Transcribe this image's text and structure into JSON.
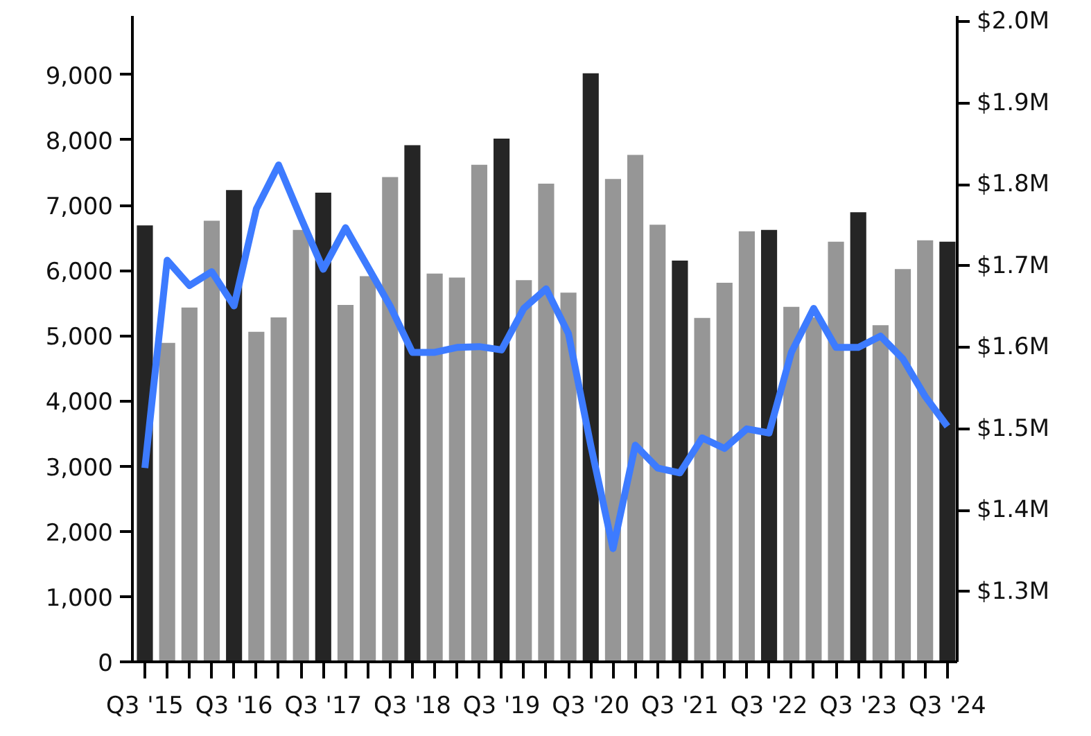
{
  "chart_data": {
    "type": "bar",
    "categories": [
      "Q3 '15",
      null,
      null,
      null,
      "Q3 '16",
      null,
      null,
      null,
      "Q3 '17",
      null,
      null,
      null,
      "Q3 '18",
      null,
      null,
      null,
      "Q3 '19",
      null,
      null,
      null,
      "Q3 '20",
      null,
      null,
      null,
      "Q3 '21",
      null,
      null,
      null,
      "Q3 '22",
      null,
      null,
      null,
      "Q3 '23",
      null,
      null,
      null,
      "Q3 '24"
    ],
    "series": [
      {
        "colors": [
          "#252525",
          "#969696",
          "#969696",
          "#969696",
          "#252525",
          "#969696",
          "#969696",
          "#969696",
          "#252525",
          "#969696",
          "#969696",
          "#969696",
          "#252525",
          "#969696",
          "#969696",
          "#969696",
          "#252525",
          "#969696",
          "#969696",
          "#969696",
          "#252525",
          "#969696",
          "#969696",
          "#969696",
          "#252525",
          "#969696",
          "#969696",
          "#969696",
          "#252525",
          "#969696",
          "#969696",
          "#969696",
          "#252525",
          "#969696",
          "#969696",
          "#969696",
          "#252525"
        ],
        "values": [
          6690,
          4890,
          5430,
          6760,
          7230,
          5060,
          5280,
          6620,
          7190,
          5470,
          5910,
          7430,
          7920,
          5950,
          5890,
          7620,
          8020,
          5850,
          7330,
          5660,
          9020,
          7400,
          7770,
          6700,
          6150,
          5270,
          5810,
          6600,
          6620,
          5440,
          5280,
          6440,
          6890,
          5160,
          6020,
          6460,
          6440
        ]
      },
      {
        "type": "line",
        "axis": "y2",
        "color": "#3d7bff",
        "values": [
          1.452,
          1.707,
          1.676,
          1.693,
          1.651,
          1.77,
          1.824,
          1.759,
          1.696,
          1.747,
          1.699,
          1.651,
          1.594,
          1.594,
          1.6,
          1.601,
          1.597,
          1.648,
          1.672,
          1.617,
          1.48,
          1.353,
          1.48,
          1.452,
          1.446,
          1.489,
          1.476,
          1.5,
          1.495,
          1.594,
          1.648,
          1.6,
          1.6,
          1.614,
          1.586,
          1.54,
          1.503
        ]
      }
    ],
    "ylim": [
      0,
      9900
    ],
    "yticks": [
      0,
      {
        "value": 1000,
        "label": "1,000"
      },
      {
        "value": 2000,
        "label": "2,000"
      },
      {
        "value": 3000,
        "label": "3,000"
      },
      {
        "value": 4000,
        "label": "4,000"
      },
      {
        "value": 5000,
        "label": "5,000"
      },
      {
        "value": 6000,
        "label": "6,000"
      },
      {
        "value": 7000,
        "label": "7,000"
      },
      {
        "value": 8000,
        "label": "8,000"
      },
      {
        "value": 9000,
        "label": "9,000"
      }
    ],
    "y2lim": [
      1.214,
      2.007
    ],
    "y2ticks": [
      {
        "value": 1.3,
        "label": "$1.3M"
      },
      {
        "value": 1.4,
        "label": "$1.4M"
      },
      {
        "value": 1.5,
        "label": "$1.5M"
      },
      {
        "value": 1.6,
        "label": "$1.6M"
      },
      {
        "value": 1.7,
        "label": "$1.7M"
      },
      {
        "value": 1.8,
        "label": "$1.8M"
      },
      {
        "value": 1.9,
        "label": "$1.9M"
      },
      {
        "value": 2.0,
        "label": "$2.0M"
      }
    ],
    "grid": false
  }
}
